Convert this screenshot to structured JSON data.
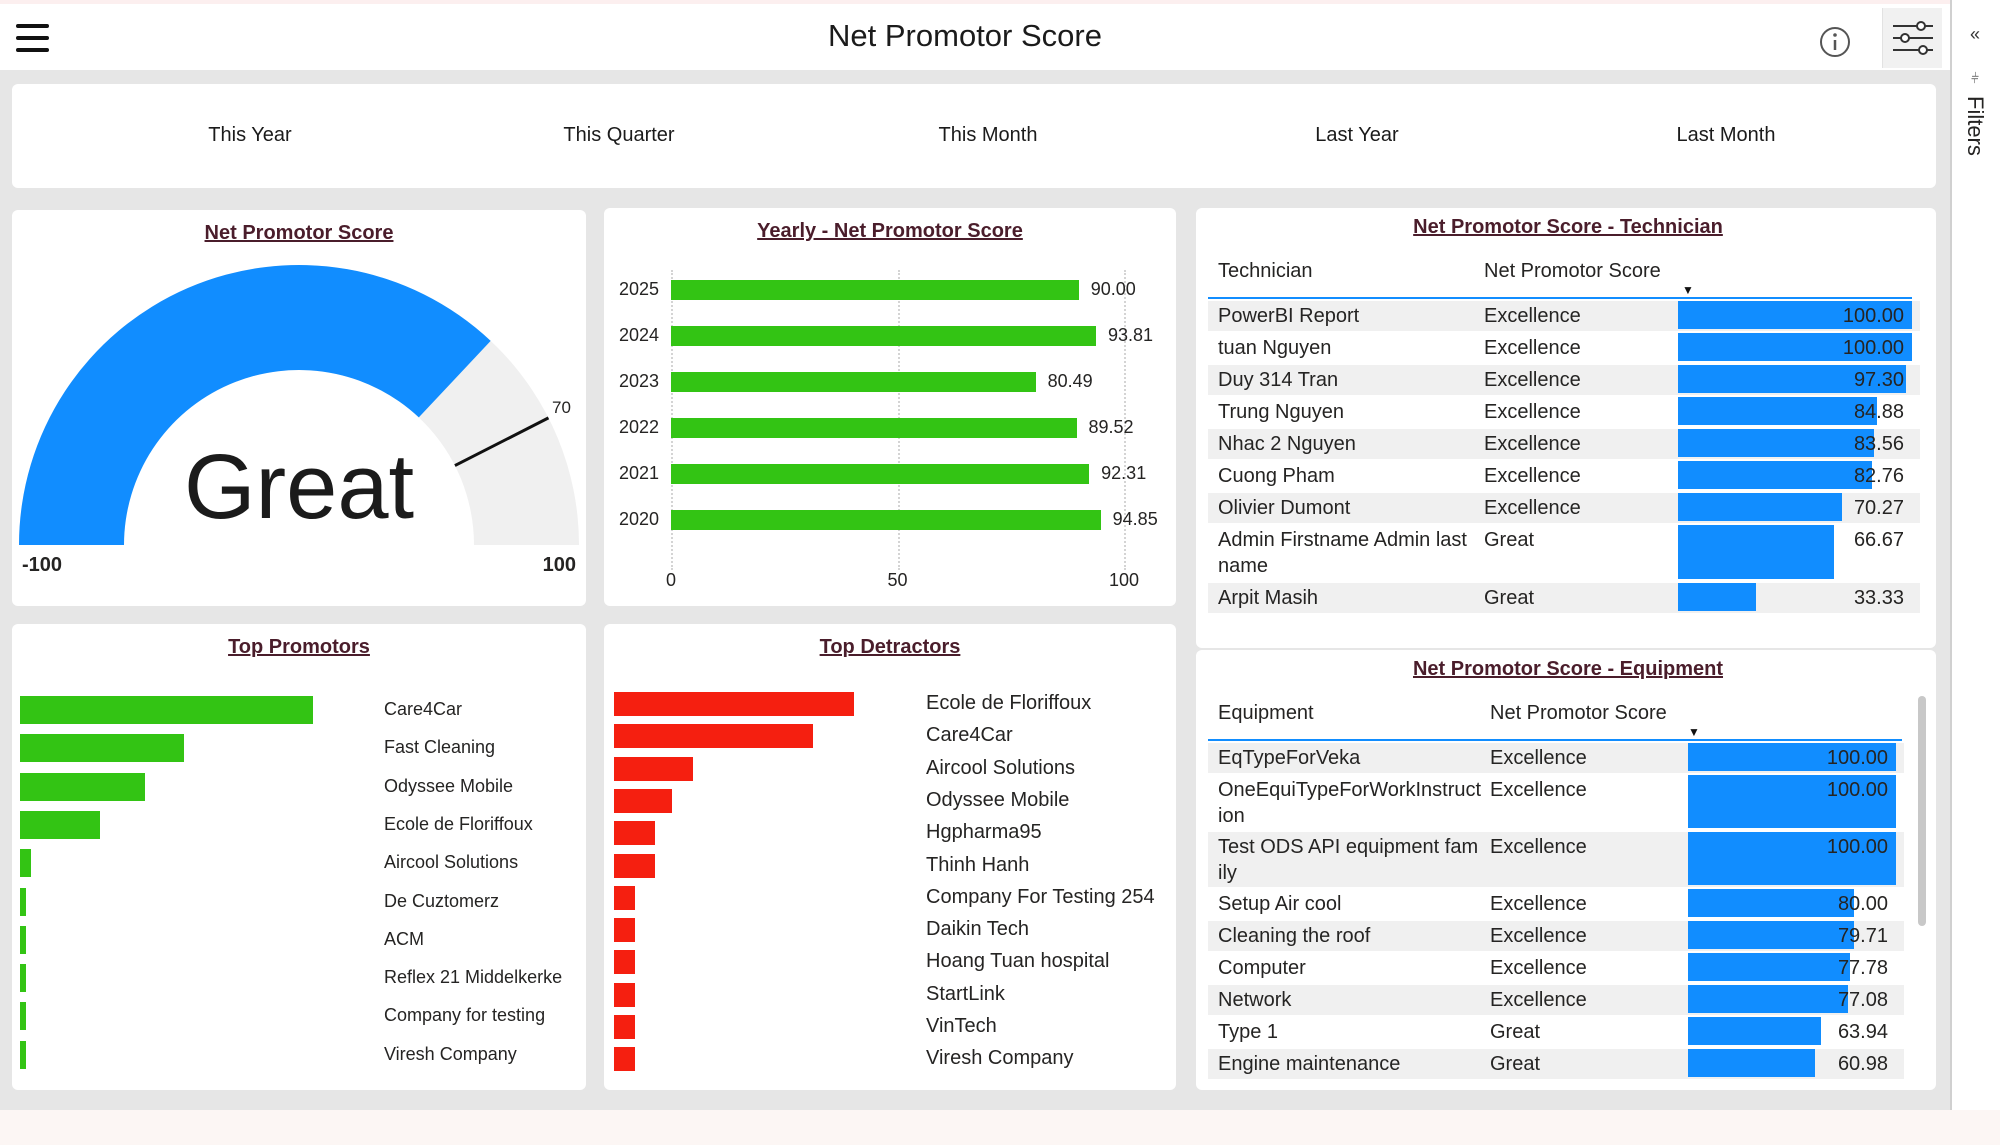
{
  "header": {
    "title": "Net Promotor Score"
  },
  "filter_pane": {
    "label": "Filters"
  },
  "periods": [
    "This Year",
    "This Quarter",
    "This Month",
    "Last Year",
    "Last Month"
  ],
  "gauge": {
    "title": "Net Promotor Score",
    "status": "Great",
    "min_label": "-100",
    "max_label": "100",
    "target_label": "70",
    "min": -100,
    "max": 100,
    "value": 48,
    "target": 70,
    "fill_color": "#118dff",
    "track_color": "#f0f0f0"
  },
  "yearly": {
    "title": "Yearly - Net Promotor Score",
    "bar_color": "#33c414"
  },
  "technician": {
    "title": "Net Promotor Score - Technician",
    "col1": "Technician",
    "col2": "Net Promotor Score",
    "rows": [
      {
        "name": "PowerBI Report",
        "rating": "Excellence",
        "score": "100.00",
        "v": 100
      },
      {
        "name": "tuan Nguyen",
        "rating": "Excellence",
        "score": "100.00",
        "v": 100
      },
      {
        "name": "Duy 314 Tran",
        "rating": "Excellence",
        "score": "97.30",
        "v": 97.3
      },
      {
        "name": "Trung Nguyen",
        "rating": "Excellence",
        "score": "84.88",
        "v": 84.88
      },
      {
        "name": "Nhac 2 Nguyen",
        "rating": "Excellence",
        "score": "83.56",
        "v": 83.56
      },
      {
        "name": "Cuong Pham",
        "rating": "Excellence",
        "score": "82.76",
        "v": 82.76
      },
      {
        "name": "Olivier Dumont",
        "rating": "Excellence",
        "score": "70.27",
        "v": 70.27
      },
      {
        "name": "Admin Firstname Admin lastname",
        "rating": "Great",
        "score": "66.67",
        "v": 66.67
      },
      {
        "name": "Arpit Masih",
        "rating": "Great",
        "score": "33.33",
        "v": 33.33
      }
    ]
  },
  "equipment": {
    "title": "Net Promotor Score - Equipment",
    "col1": "Equipment",
    "col2": "Net Promotor Score",
    "rows": [
      {
        "name": "EqTypeForVeka",
        "rating": "Excellence",
        "score": "100.00",
        "v": 100
      },
      {
        "name": "OneEquiTypeForWorkInstruction",
        "rating": "Excellence",
        "score": "100.00",
        "v": 100
      },
      {
        "name": "Test ODS API equipment family",
        "rating": "Excellence",
        "score": "100.00",
        "v": 100
      },
      {
        "name": "Setup Air cool",
        "rating": "Excellence",
        "score": "80.00",
        "v": 80
      },
      {
        "name": "Cleaning the roof",
        "rating": "Excellence",
        "score": "79.71",
        "v": 79.71
      },
      {
        "name": "Computer",
        "rating": "Excellence",
        "score": "77.78",
        "v": 77.78
      },
      {
        "name": "Network",
        "rating": "Excellence",
        "score": "77.08",
        "v": 77.08
      },
      {
        "name": "Type 1",
        "rating": "Great",
        "score": "63.94",
        "v": 63.94
      },
      {
        "name": "Engine maintenance",
        "rating": "Great",
        "score": "60.98",
        "v": 60.98
      }
    ]
  },
  "promotors": {
    "title": "Top Promotors",
    "bar_color": "#33c414",
    "items": [
      {
        "name": "Care4Car",
        "v": 68
      },
      {
        "name": "Fast Cleaning",
        "v": 38
      },
      {
        "name": "Odyssee Mobile",
        "v": 29
      },
      {
        "name": "Ecole de Floriffoux",
        "v": 18.5
      },
      {
        "name": "Aircool Solutions",
        "v": 2.5
      },
      {
        "name": "De Cuztomerz",
        "v": 1.5
      },
      {
        "name": "ACM",
        "v": 1.5
      },
      {
        "name": "Reflex 21 Middelkerke",
        "v": 1.5
      },
      {
        "name": "Company for testing",
        "v": 1.5
      },
      {
        "name": "Viresh Company",
        "v": 1.5
      }
    ]
  },
  "detractors": {
    "title": "Top Detractors",
    "bar_color": "#f51f10",
    "items": [
      {
        "name": "Ecole de Floriffoux",
        "v": 29
      },
      {
        "name": "Care4Car",
        "v": 24
      },
      {
        "name": "Aircool Solutions",
        "v": 9.5
      },
      {
        "name": "Odyssee Mobile",
        "v": 7
      },
      {
        "name": "Hgpharma95",
        "v": 5
      },
      {
        "name": "Thinh Hanh",
        "v": 5
      },
      {
        "name": "Company For Testing 254",
        "v": 2.5
      },
      {
        "name": "Daikin Tech",
        "v": 2.5
      },
      {
        "name": "Hoang Tuan hospital",
        "v": 2.5
      },
      {
        "name": "StartLink",
        "v": 2.5
      },
      {
        "name": "VinTech",
        "v": 2.5
      },
      {
        "name": "Viresh Company",
        "v": 2.5
      }
    ]
  },
  "chart_data": {
    "type": "bar",
    "title": "Yearly - Net Promotor Score",
    "categories": [
      "2025",
      "2024",
      "2023",
      "2022",
      "2021",
      "2020"
    ],
    "values": [
      90.0,
      93.81,
      80.49,
      89.52,
      92.31,
      94.85
    ],
    "value_labels": [
      "90.00",
      "93.81",
      "80.49",
      "89.52",
      "92.31",
      "94.85"
    ],
    "x_ticks": [
      "0",
      "50",
      "100"
    ],
    "xlim": [
      0,
      100
    ],
    "orientation": "horizontal"
  }
}
